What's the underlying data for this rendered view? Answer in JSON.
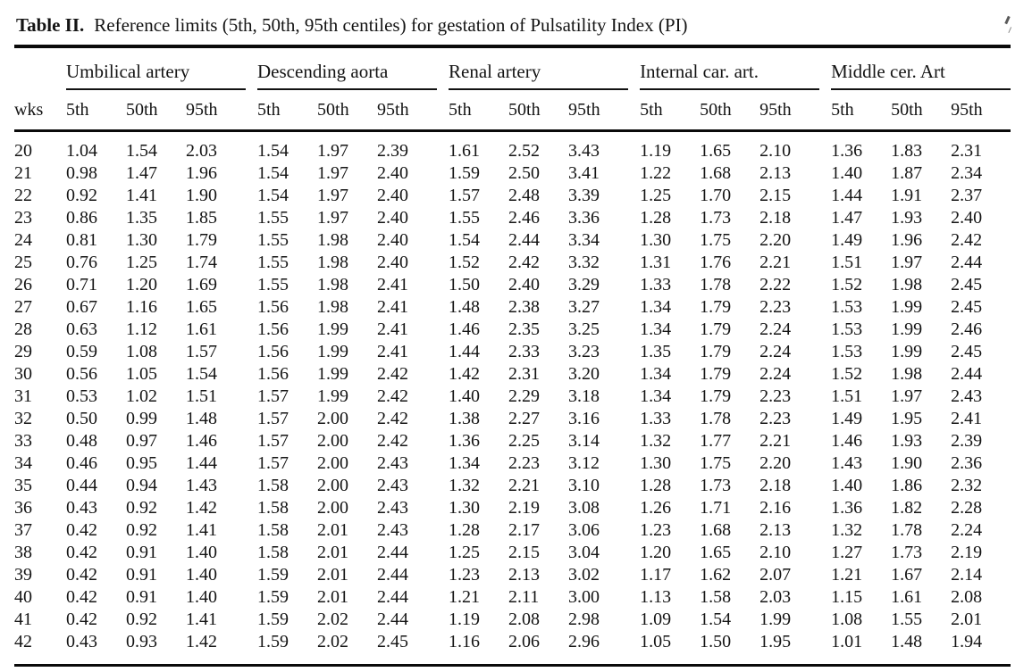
{
  "title": {
    "label": "Table II.",
    "caption": "Reference limits (5th, 50th, 95th centiles) for gestation of Pulsatility Index (PI)"
  },
  "colors": {
    "ink": "#141414",
    "rule": "#0a0a0a",
    "background": "#ffffff"
  },
  "table": {
    "row_header": "wks",
    "subheaders": [
      "5th",
      "50th",
      "95th"
    ],
    "groups": [
      {
        "name": "Umbilical artery"
      },
      {
        "name": "Descending aorta"
      },
      {
        "name": "Renal artery"
      },
      {
        "name": "Internal car. art."
      },
      {
        "name": "Middle cer. Art"
      }
    ],
    "rows": [
      {
        "wks": "20",
        "values": [
          "1.04",
          "1.54",
          "2.03",
          "1.54",
          "1.97",
          "2.39",
          "1.61",
          "2.52",
          "3.43",
          "1.19",
          "1.65",
          "2.10",
          "1.36",
          "1.83",
          "2.31"
        ]
      },
      {
        "wks": "21",
        "values": [
          "0.98",
          "1.47",
          "1.96",
          "1.54",
          "1.97",
          "2.40",
          "1.59",
          "2.50",
          "3.41",
          "1.22",
          "1.68",
          "2.13",
          "1.40",
          "1.87",
          "2.34"
        ]
      },
      {
        "wks": "22",
        "values": [
          "0.92",
          "1.41",
          "1.90",
          "1.54",
          "1.97",
          "2.40",
          "1.57",
          "2.48",
          "3.39",
          "1.25",
          "1.70",
          "2.15",
          "1.44",
          "1.91",
          "2.37"
        ]
      },
      {
        "wks": "23",
        "values": [
          "0.86",
          "1.35",
          "1.85",
          "1.55",
          "1.97",
          "2.40",
          "1.55",
          "2.46",
          "3.36",
          "1.28",
          "1.73",
          "2.18",
          "1.47",
          "1.93",
          "2.40"
        ]
      },
      {
        "wks": "24",
        "values": [
          "0.81",
          "1.30",
          "1.79",
          "1.55",
          "1.98",
          "2.40",
          "1.54",
          "2.44",
          "3.34",
          "1.30",
          "1.75",
          "2.20",
          "1.49",
          "1.96",
          "2.42"
        ]
      },
      {
        "wks": "25",
        "values": [
          "0.76",
          "1.25",
          "1.74",
          "1.55",
          "1.98",
          "2.40",
          "1.52",
          "2.42",
          "3.32",
          "1.31",
          "1.76",
          "2.21",
          "1.51",
          "1.97",
          "2.44"
        ]
      },
      {
        "wks": "26",
        "values": [
          "0.71",
          "1.20",
          "1.69",
          "1.55",
          "1.98",
          "2.41",
          "1.50",
          "2.40",
          "3.29",
          "1.33",
          "1.78",
          "2.22",
          "1.52",
          "1.98",
          "2.45"
        ]
      },
      {
        "wks": "27",
        "values": [
          "0.67",
          "1.16",
          "1.65",
          "1.56",
          "1.98",
          "2.41",
          "1.48",
          "2.38",
          "3.27",
          "1.34",
          "1.79",
          "2.23",
          "1.53",
          "1.99",
          "2.45"
        ]
      },
      {
        "wks": "28",
        "values": [
          "0.63",
          "1.12",
          "1.61",
          "1.56",
          "1.99",
          "2.41",
          "1.46",
          "2.35",
          "3.25",
          "1.34",
          "1.79",
          "2.24",
          "1.53",
          "1.99",
          "2.46"
        ]
      },
      {
        "wks": "29",
        "values": [
          "0.59",
          "1.08",
          "1.57",
          "1.56",
          "1.99",
          "2.41",
          "1.44",
          "2.33",
          "3.23",
          "1.35",
          "1.79",
          "2.24",
          "1.53",
          "1.99",
          "2.45"
        ]
      },
      {
        "wks": "30",
        "values": [
          "0.56",
          "1.05",
          "1.54",
          "1.56",
          "1.99",
          "2.42",
          "1.42",
          "2.31",
          "3.20",
          "1.34",
          "1.79",
          "2.24",
          "1.52",
          "1.98",
          "2.44"
        ]
      },
      {
        "wks": "31",
        "values": [
          "0.53",
          "1.02",
          "1.51",
          "1.57",
          "1.99",
          "2.42",
          "1.40",
          "2.29",
          "3.18",
          "1.34",
          "1.79",
          "2.23",
          "1.51",
          "1.97",
          "2.43"
        ]
      },
      {
        "wks": "32",
        "values": [
          "0.50",
          "0.99",
          "1.48",
          "1.57",
          "2.00",
          "2.42",
          "1.38",
          "2.27",
          "3.16",
          "1.33",
          "1.78",
          "2.23",
          "1.49",
          "1.95",
          "2.41"
        ]
      },
      {
        "wks": "33",
        "values": [
          "0.48",
          "0.97",
          "1.46",
          "1.57",
          "2.00",
          "2.42",
          "1.36",
          "2.25",
          "3.14",
          "1.32",
          "1.77",
          "2.21",
          "1.46",
          "1.93",
          "2.39"
        ]
      },
      {
        "wks": "34",
        "values": [
          "0.46",
          "0.95",
          "1.44",
          "1.57",
          "2.00",
          "2.43",
          "1.34",
          "2.23",
          "3.12",
          "1.30",
          "1.75",
          "2.20",
          "1.43",
          "1.90",
          "2.36"
        ]
      },
      {
        "wks": "35",
        "values": [
          "0.44",
          "0.94",
          "1.43",
          "1.58",
          "2.00",
          "2.43",
          "1.32",
          "2.21",
          "3.10",
          "1.28",
          "1.73",
          "2.18",
          "1.40",
          "1.86",
          "2.32"
        ]
      },
      {
        "wks": "36",
        "values": [
          "0.43",
          "0.92",
          "1.42",
          "1.58",
          "2.00",
          "2.43",
          "1.30",
          "2.19",
          "3.08",
          "1.26",
          "1.71",
          "2.16",
          "1.36",
          "1.82",
          "2.28"
        ]
      },
      {
        "wks": "37",
        "values": [
          "0.42",
          "0.92",
          "1.41",
          "1.58",
          "2.01",
          "2.43",
          "1.28",
          "2.17",
          "3.06",
          "1.23",
          "1.68",
          "2.13",
          "1.32",
          "1.78",
          "2.24"
        ]
      },
      {
        "wks": "38",
        "values": [
          "0.42",
          "0.91",
          "1.40",
          "1.58",
          "2.01",
          "2.44",
          "1.25",
          "2.15",
          "3.04",
          "1.20",
          "1.65",
          "2.10",
          "1.27",
          "1.73",
          "2.19"
        ]
      },
      {
        "wks": "39",
        "values": [
          "0.42",
          "0.91",
          "1.40",
          "1.59",
          "2.01",
          "2.44",
          "1.23",
          "2.13",
          "3.02",
          "1.17",
          "1.62",
          "2.07",
          "1.21",
          "1.67",
          "2.14"
        ]
      },
      {
        "wks": "40",
        "values": [
          "0.42",
          "0.91",
          "1.40",
          "1.59",
          "2.01",
          "2.44",
          "1.21",
          "2.11",
          "3.00",
          "1.13",
          "1.58",
          "2.03",
          "1.15",
          "1.61",
          "2.08"
        ]
      },
      {
        "wks": "41",
        "values": [
          "0.42",
          "0.92",
          "1.41",
          "1.59",
          "2.02",
          "2.44",
          "1.19",
          "2.08",
          "2.98",
          "1.09",
          "1.54",
          "1.99",
          "1.08",
          "1.55",
          "2.01"
        ]
      },
      {
        "wks": "42",
        "values": [
          "0.43",
          "0.93",
          "1.42",
          "1.59",
          "2.02",
          "2.45",
          "1.16",
          "2.06",
          "2.96",
          "1.05",
          "1.50",
          "1.95",
          "1.01",
          "1.48",
          "1.94"
        ]
      }
    ]
  }
}
